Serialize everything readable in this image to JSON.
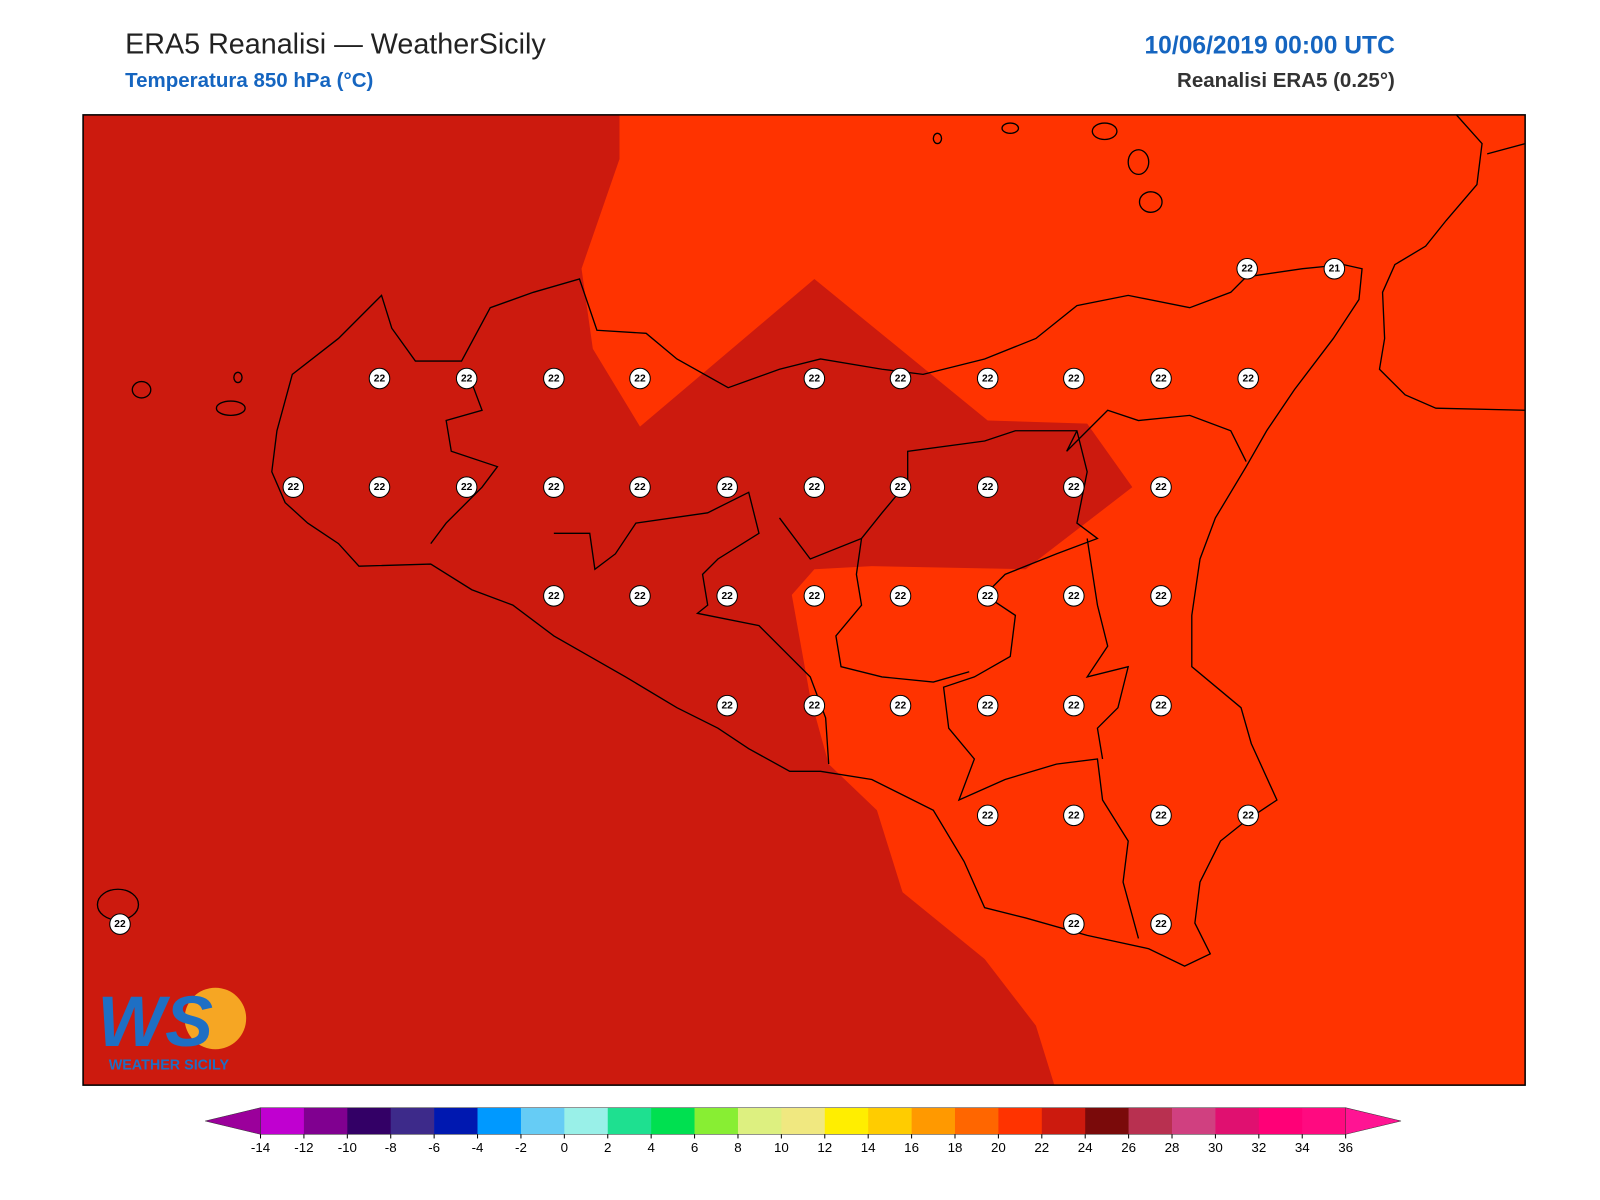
{
  "header": {
    "title": "ERA5 Reanalisi — WeatherSicily",
    "subtitle": "Temperatura 850 hPa (°C)",
    "datetime": "10/06/2019 00:00 UTC",
    "source": "Reanalisi ERA5 (0.25°)"
  },
  "points": [
    {
      "value": 22
    },
    {
      "value": 21
    },
    {
      "value": 22
    },
    {
      "value": 22
    },
    {
      "value": 22
    },
    {
      "value": 22
    },
    {
      "value": 22
    },
    {
      "value": 22
    },
    {
      "value": 22
    },
    {
      "value": 22
    },
    {
      "value": 22
    },
    {
      "value": 22
    },
    {
      "value": 22
    },
    {
      "value": 22
    },
    {
      "value": 22
    },
    {
      "value": 22
    },
    {
      "value": 22
    },
    {
      "value": 22
    },
    {
      "value": 22
    },
    {
      "value": 22
    },
    {
      "value": 22
    },
    {
      "value": 22
    },
    {
      "value": 22
    },
    {
      "value": 22
    },
    {
      "value": 22
    },
    {
      "value": 22
    },
    {
      "value": 22
    },
    {
      "value": 22
    },
    {
      "value": 22
    },
    {
      "value": 22
    },
    {
      "value": 22
    },
    {
      "value": 22
    },
    {
      "value": 22
    },
    {
      "value": 22
    },
    {
      "value": 22
    },
    {
      "value": 22
    },
    {
      "value": 22
    },
    {
      "value": 22
    },
    {
      "value": 22
    },
    {
      "value": 22
    },
    {
      "value": 22
    },
    {
      "value": 22
    },
    {
      "value": 22
    },
    {
      "value": 22
    }
  ],
  "logo": {
    "mark": "WS",
    "text": "WEATHER SICILY"
  },
  "colorbar": {
    "ticks": [
      -14,
      -12,
      -10,
      -8,
      -6,
      -4,
      -2,
      0,
      2,
      4,
      6,
      8,
      10,
      12,
      14,
      16,
      18,
      20,
      22,
      24,
      26,
      28,
      30,
      32,
      34,
      36
    ],
    "colors": [
      "#c000d0",
      "#800090",
      "#330066",
      "#3d2a8a",
      "#0018b0",
      "#0099ff",
      "#66ccf5",
      "#99f0e8",
      "#1ee090",
      "#00e050",
      "#88ee33",
      "#ddf080",
      "#f0e880",
      "#ffee00",
      "#ffcc00",
      "#ff9900",
      "#ff6600",
      "#ff3300",
      "#cc1a0e",
      "#7a0a0a",
      "#b83050",
      "#d04080",
      "#e01070",
      "#ff0077",
      "#ff0a80"
    ],
    "under": "#9b009b",
    "over": "#ff1493"
  }
}
